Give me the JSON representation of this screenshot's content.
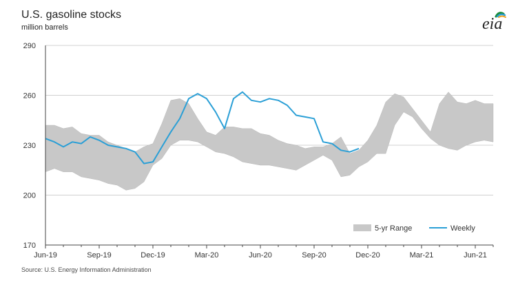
{
  "header": {
    "title": "U.S. gasoline stocks",
    "subtitle": "million barrels"
  },
  "footer": {
    "source": "Source: U.S. Energy Information Administration"
  },
  "logo": {
    "text": "eia",
    "icon": "eia-logo-icon"
  },
  "colors": {
    "weekly": "#2a9fd6",
    "range": "#c8c8c8",
    "range_edge": "#b8b8b8",
    "axis": "#444444",
    "grid": "#d0d0d0"
  },
  "chart_data": {
    "type": "line",
    "title": "U.S. gasoline stocks",
    "ylabel": "million barrels",
    "ylim": [
      170,
      290
    ],
    "yticks": [
      170,
      200,
      230,
      260,
      290
    ],
    "grid": true,
    "legend": {
      "placement": "bottom-right",
      "entries": [
        "5-yr Range",
        "Weekly"
      ]
    },
    "xticks": [
      "Jun-19",
      "Sep-19",
      "Dec-19",
      "Mar-20",
      "Jun-20",
      "Sep-20",
      "Dec-20",
      "Mar-21",
      "Jun-21"
    ],
    "x_range_months": [
      0,
      25
    ],
    "series": [
      {
        "name": "5-yr Range",
        "type": "area-band",
        "x": [
          0,
          0.5,
          1,
          1.5,
          2,
          2.5,
          3,
          3.5,
          4,
          4.5,
          5,
          5.5,
          6,
          6.5,
          7,
          7.5,
          8,
          8.5,
          9,
          9.5,
          10,
          10.5,
          11,
          11.5,
          12,
          12.5,
          13,
          13.5,
          14,
          14.5,
          15,
          15.5,
          16,
          16.5,
          17,
          17.5,
          18,
          18.5,
          19,
          19.5,
          20,
          20.5,
          21,
          21.5,
          22,
          22.5,
          23,
          23.5,
          24,
          24.5,
          25
        ],
        "upper": [
          242,
          242,
          240,
          241,
          237,
          236,
          236,
          232,
          230,
          228,
          226,
          229,
          231,
          243,
          257,
          258,
          255,
          246,
          238,
          236,
          241,
          241,
          240,
          240,
          237,
          236,
          233,
          231,
          230,
          228,
          229,
          229,
          231,
          235,
          225,
          227,
          233,
          242,
          256,
          261,
          259,
          252,
          245,
          238,
          255,
          262,
          256,
          255,
          257,
          255,
          255
        ],
        "lower": [
          214,
          216,
          214,
          214,
          211,
          210,
          209,
          207,
          206,
          203,
          204,
          208,
          218,
          222,
          230,
          233,
          233,
          232,
          229,
          226,
          225,
          223,
          220,
          219,
          218,
          218,
          217,
          216,
          215,
          218,
          221,
          224,
          221,
          211,
          212,
          217,
          220,
          225,
          225,
          242,
          250,
          247,
          240,
          234,
          230,
          228,
          227,
          230,
          232,
          233,
          232
        ]
      },
      {
        "name": "Weekly",
        "type": "line",
        "x": [
          0,
          0.5,
          1,
          1.5,
          2,
          2.5,
          3,
          3.5,
          4,
          4.5,
          5,
          5.5,
          6,
          6.5,
          7,
          7.5,
          8,
          8.5,
          9,
          9.5,
          10,
          10.5,
          11,
          11.5,
          12,
          12.5,
          13,
          13.5,
          14,
          14.5,
          15,
          15.5,
          16,
          16.5,
          17,
          17.5
        ],
        "values": [
          234,
          232,
          229,
          232,
          231,
          235,
          233,
          230,
          229,
          228,
          226,
          219,
          220,
          229,
          238,
          246,
          258,
          261,
          258,
          250,
          240,
          258,
          262,
          257,
          256,
          258,
          257,
          254,
          248,
          247,
          246,
          232,
          231,
          227,
          226,
          228
        ]
      }
    ]
  }
}
